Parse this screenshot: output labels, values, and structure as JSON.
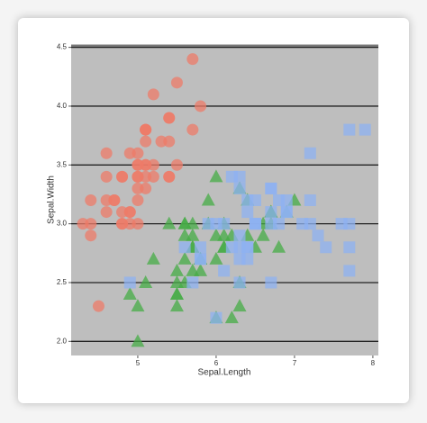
{
  "chart_data": {
    "type": "scatter",
    "x_label": "Sepal.Length",
    "y_label": "Sepal.Width",
    "xlim": [
      4.15,
      8.07
    ],
    "ylim": [
      1.88,
      4.52
    ],
    "xticks": [
      5,
      6,
      7,
      8
    ],
    "yticks": [
      {
        "value": 2,
        "label": "2.0"
      },
      2.5,
      {
        "value": 3,
        "label": "3.0"
      },
      3.5,
      {
        "value": 4,
        "label": "4.0"
      },
      4.5
    ],
    "grid": true,
    "series": [
      {
        "color": "#ee7b68",
        "marker": "circle",
        "x": [
          5.1,
          4.9,
          4.7,
          4.6,
          5.0,
          5.4,
          4.6,
          5.0,
          4.4,
          4.9,
          5.4,
          4.8,
          4.8,
          4.3,
          5.8,
          5.7,
          5.4,
          5.1,
          5.7,
          5.1,
          5.4,
          5.1,
          4.6,
          5.1,
          4.8,
          5.0,
          5.0,
          5.2,
          5.2,
          4.7,
          4.8,
          5.4,
          5.2,
          5.5,
          4.9,
          5.0,
          5.5,
          4.9,
          4.4,
          5.1,
          5.0,
          4.5,
          4.4,
          5.0,
          5.1,
          4.8,
          5.1,
          4.6,
          5.3,
          5.0
        ],
        "values": [
          3.5,
          3.0,
          3.2,
          3.1,
          3.6,
          3.9,
          3.4,
          3.4,
          2.9,
          3.1,
          3.7,
          3.4,
          3.0,
          3.0,
          4.0,
          4.4,
          3.9,
          3.5,
          3.8,
          3.8,
          3.4,
          3.7,
          3.6,
          3.3,
          3.4,
          3.0,
          3.4,
          3.5,
          3.4,
          3.2,
          3.1,
          3.4,
          4.1,
          4.2,
          3.1,
          3.2,
          3.5,
          3.6,
          3.0,
          3.4,
          3.5,
          2.3,
          3.2,
          3.5,
          3.8,
          3.0,
          3.8,
          3.2,
          3.7,
          3.3
        ]
      },
      {
        "color": "#46ac46",
        "marker": "triangle",
        "x": [
          7.0,
          6.4,
          6.9,
          5.5,
          6.5,
          5.7,
          6.3,
          4.9,
          6.6,
          5.2,
          5.0,
          5.9,
          6.0,
          6.1,
          5.6,
          6.7,
          5.6,
          5.8,
          6.2,
          5.6,
          5.9,
          6.1,
          6.3,
          6.1,
          6.4,
          6.6,
          6.8,
          6.7,
          6.0,
          5.7,
          5.5,
          5.5,
          5.8,
          6.0,
          5.4,
          6.0,
          6.7,
          6.3,
          5.6,
          5.5,
          5.5,
          6.1,
          5.8,
          5.0,
          5.6,
          5.7,
          5.7,
          6.2,
          5.1,
          5.7
        ],
        "values": [
          3.2,
          3.2,
          3.1,
          2.3,
          2.8,
          2.8,
          3.3,
          2.4,
          2.9,
          2.7,
          2.0,
          3.0,
          2.2,
          2.9,
          2.9,
          3.1,
          3.0,
          2.7,
          2.2,
          2.5,
          3.2,
          2.8,
          2.5,
          2.8,
          2.9,
          3.0,
          2.8,
          3.0,
          2.9,
          2.6,
          2.4,
          2.4,
          2.7,
          2.7,
          3.0,
          3.4,
          3.1,
          2.3,
          3.0,
          2.5,
          2.6,
          3.0,
          2.6,
          2.3,
          2.7,
          3.0,
          2.9,
          2.9,
          2.5,
          2.8
        ]
      },
      {
        "color": "#8eb2f2",
        "marker": "square",
        "x": [
          6.3,
          5.8,
          7.1,
          6.3,
          6.5,
          7.6,
          4.9,
          7.3,
          6.7,
          7.2,
          6.5,
          6.4,
          6.8,
          5.7,
          5.8,
          6.4,
          6.5,
          7.7,
          7.7,
          6.0,
          6.9,
          5.6,
          7.7,
          6.3,
          6.7,
          7.2,
          6.2,
          6.1,
          6.4,
          7.2,
          7.4,
          7.9,
          6.4,
          6.3,
          6.1,
          7.7,
          6.3,
          6.4,
          6.0,
          6.9,
          6.7,
          6.9,
          5.8,
          6.8,
          6.7,
          6.7,
          6.3,
          6.5,
          6.2,
          5.9
        ],
        "values": [
          3.3,
          2.7,
          3.0,
          2.9,
          3.0,
          3.0,
          2.5,
          2.9,
          2.5,
          3.6,
          3.2,
          2.7,
          3.0,
          2.5,
          2.8,
          3.2,
          3.0,
          3.8,
          2.6,
          2.2,
          3.2,
          2.8,
          2.8,
          2.7,
          3.3,
          3.2,
          2.8,
          3.0,
          2.8,
          3.0,
          2.8,
          3.8,
          2.8,
          2.8,
          2.6,
          3.0,
          3.4,
          3.1,
          3.0,
          3.1,
          3.1,
          3.1,
          2.7,
          3.2,
          3.3,
          3.0,
          2.5,
          3.0,
          3.4,
          3.0
        ]
      }
    ]
  }
}
